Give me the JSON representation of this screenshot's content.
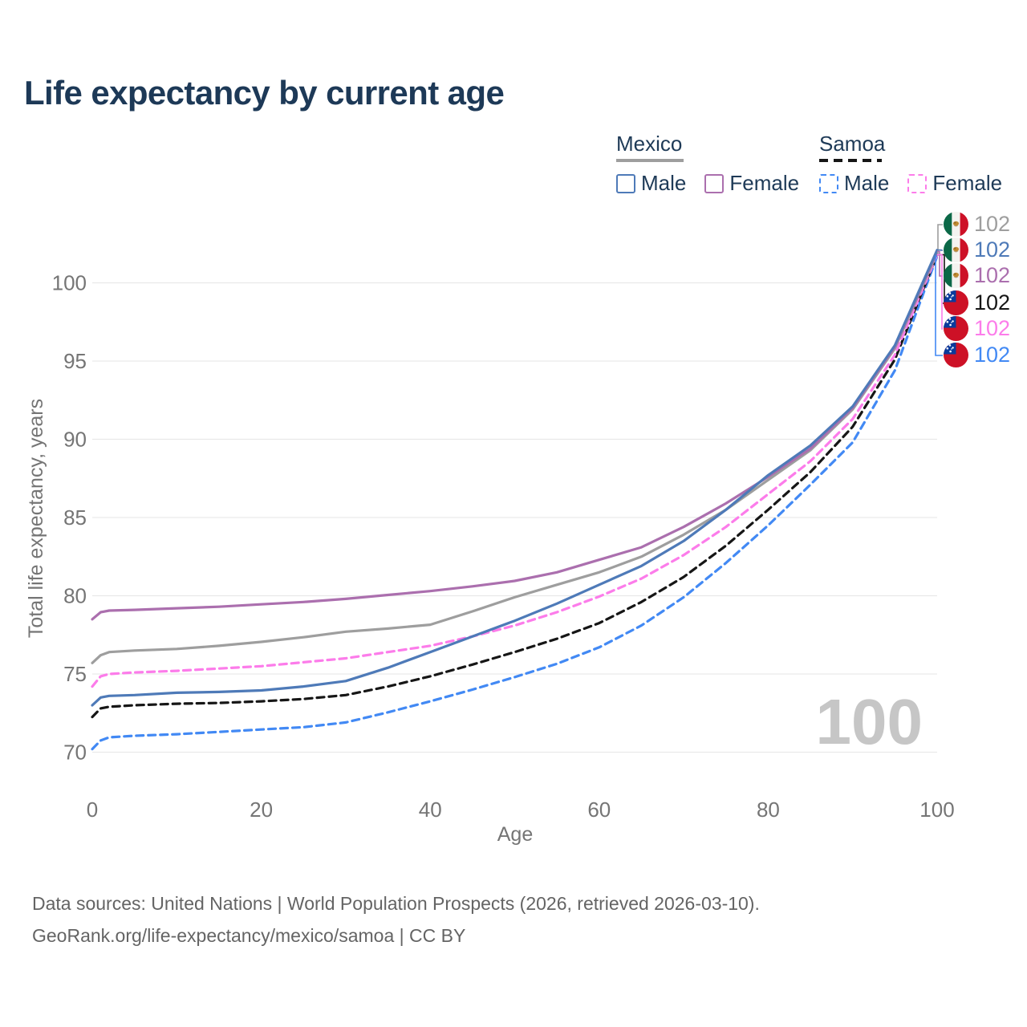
{
  "title": "Life expectancy by current age",
  "legend": {
    "groups": [
      {
        "id": "mexico",
        "label": "Mexico",
        "line_style": "solid",
        "line_color": "#9e9e9e",
        "items": [
          {
            "label": "Male",
            "color": "#4e7ab8",
            "dashed": false
          },
          {
            "label": "Female",
            "color": "#ab6fae",
            "dashed": false
          }
        ]
      },
      {
        "id": "samoa",
        "label": "Samoa",
        "line_style": "dashed",
        "line_color": "#161616",
        "items": [
          {
            "label": "Male",
            "color": "#4289f4",
            "dashed": true
          },
          {
            "label": "Female",
            "color": "#fc7cea",
            "dashed": true
          }
        ]
      }
    ]
  },
  "chart_data": {
    "type": "line",
    "title": "Life expectancy by current age",
    "xlabel": "Age",
    "ylabel": "Total life expectancy, years",
    "x_ticks": [
      0,
      20,
      40,
      60,
      80,
      100
    ],
    "y_ticks": [
      70,
      75,
      80,
      85,
      90,
      95,
      100
    ],
    "xlim": [
      0,
      100
    ],
    "ylim": [
      69.5,
      102.5
    ],
    "grid": "horizontal-only",
    "legend_position": "top-right",
    "hover_age_label": "100",
    "ages": [
      0,
      1,
      2,
      5,
      10,
      15,
      20,
      25,
      30,
      35,
      40,
      45,
      50,
      55,
      60,
      65,
      70,
      75,
      80,
      85,
      90,
      95,
      100
    ],
    "series": [
      {
        "id": "mexico-total",
        "name": "Mexico",
        "country": "Mexico",
        "sex": "Both sexes",
        "style": "solid",
        "color": "#9e9e9e",
        "values": [
          75.7,
          76.2,
          76.4,
          76.5,
          76.6,
          76.8,
          77.05,
          77.35,
          77.7,
          77.9,
          78.15,
          79.0,
          79.9,
          80.7,
          81.5,
          82.5,
          83.9,
          85.5,
          87.4,
          89.3,
          91.9,
          95.8,
          101.9
        ]
      },
      {
        "id": "mexico-male",
        "name": "Mexico Male",
        "country": "Mexico",
        "sex": "Male",
        "style": "solid",
        "color": "#4e7ab8",
        "values": [
          73.0,
          73.5,
          73.6,
          73.65,
          73.8,
          73.85,
          73.95,
          74.2,
          74.55,
          75.4,
          76.4,
          77.4,
          78.4,
          79.5,
          80.7,
          81.9,
          83.5,
          85.5,
          87.7,
          89.6,
          92.1,
          96.0,
          102.1
        ]
      },
      {
        "id": "mexico-female",
        "name": "Mexico Female",
        "country": "Mexico",
        "sex": "Female",
        "style": "solid",
        "color": "#ab6fae",
        "values": [
          78.5,
          78.95,
          79.05,
          79.1,
          79.2,
          79.3,
          79.45,
          79.6,
          79.8,
          80.05,
          80.3,
          80.6,
          80.95,
          81.5,
          82.3,
          83.1,
          84.4,
          85.9,
          87.6,
          89.4,
          92.0,
          95.9,
          102.0
        ]
      },
      {
        "id": "samoa-total",
        "name": "Samoa",
        "country": "Samoa",
        "sex": "Both sexes",
        "style": "dashed",
        "color": "#161616",
        "values": [
          72.25,
          72.8,
          72.9,
          73.0,
          73.1,
          73.15,
          73.25,
          73.4,
          73.65,
          74.2,
          74.85,
          75.6,
          76.4,
          77.25,
          78.25,
          79.6,
          81.2,
          83.2,
          85.5,
          87.9,
          90.8,
          95.1,
          101.8
        ]
      },
      {
        "id": "samoa-male",
        "name": "Samoa Male",
        "country": "Samoa",
        "sex": "Male",
        "style": "dashed",
        "color": "#4289f4",
        "values": [
          70.2,
          70.75,
          70.95,
          71.05,
          71.15,
          71.3,
          71.45,
          71.6,
          71.9,
          72.55,
          73.25,
          74.0,
          74.8,
          75.65,
          76.7,
          78.1,
          79.9,
          82.1,
          84.5,
          87.1,
          89.8,
          94.4,
          101.7
        ]
      },
      {
        "id": "samoa-female",
        "name": "Samoa Female",
        "country": "Samoa",
        "sex": "Female",
        "style": "dashed",
        "color": "#fc7cea",
        "values": [
          74.2,
          74.85,
          75.0,
          75.1,
          75.2,
          75.35,
          75.5,
          75.75,
          76.0,
          76.4,
          76.8,
          77.4,
          78.1,
          78.95,
          79.95,
          81.1,
          82.6,
          84.4,
          86.5,
          88.6,
          91.3,
          95.4,
          101.8
        ]
      }
    ]
  },
  "end_labels": [
    {
      "series": "mexico-total",
      "flag": "mexico",
      "value": "102"
    },
    {
      "series": "mexico-male",
      "flag": "mexico",
      "value": "102"
    },
    {
      "series": "mexico-female",
      "flag": "mexico",
      "value": "102"
    },
    {
      "series": "samoa-total",
      "flag": "samoa",
      "value": "102"
    },
    {
      "series": "samoa-female",
      "flag": "samoa",
      "value": "102"
    },
    {
      "series": "samoa-male",
      "flag": "samoa",
      "value": "102"
    }
  ],
  "footer": {
    "line1": "Data sources: United Nations | World Population Prospects (2026, retrieved 2026-03-10).",
    "line2": "GeoRank.org/life-expectancy/mexico/samoa | CC BY"
  }
}
